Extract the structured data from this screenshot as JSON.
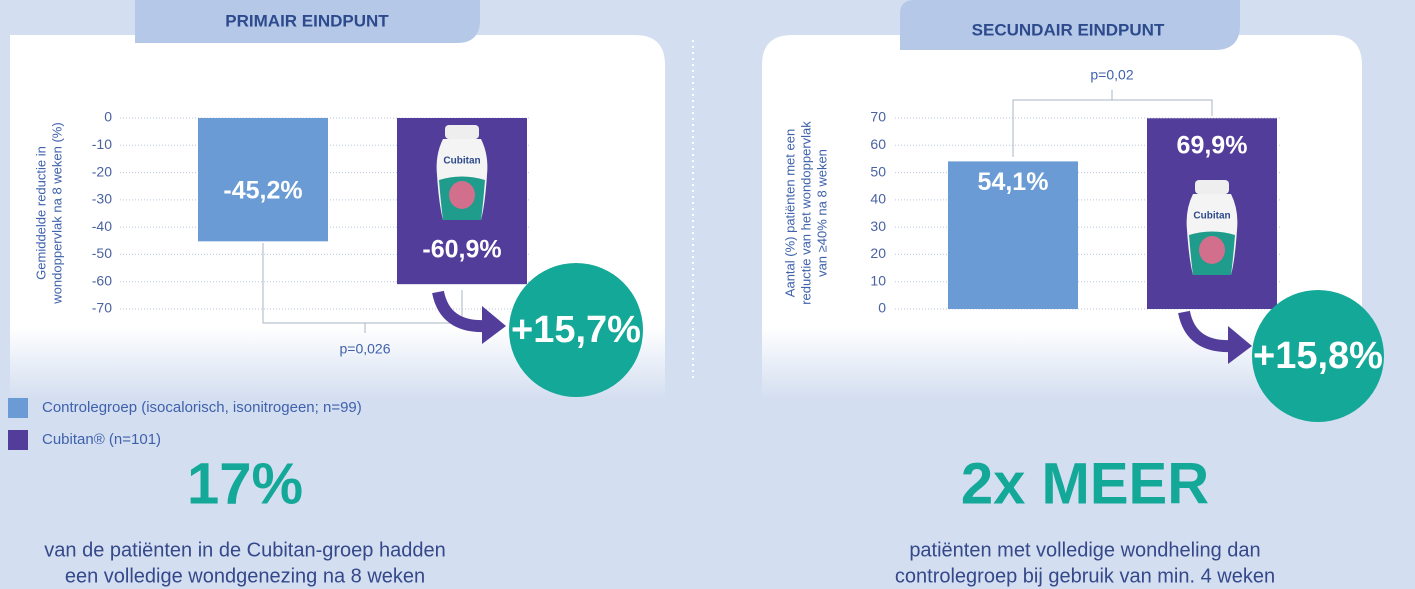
{
  "chart_data": [
    {
      "type": "bar",
      "title": "PRIMAIR EINDPUNT",
      "y_label": [
        "Gemiddelde reductie in",
        "wondoppervlak na 8 weken (%)"
      ],
      "categories": [
        null
      ],
      "series": [
        {
          "name": "Controlegroep (isocalorisch, isonitrogeen; n=99)",
          "color": "#6a9bd4",
          "values": [
            -45.2
          ],
          "value_labels": [
            "-45,2%"
          ]
        },
        {
          "name": "Cubitan® (n=101)",
          "color": "#533d9b",
          "values": [
            -60.9
          ],
          "value_labels": [
            "-60,9%"
          ]
        }
      ],
      "ylim": [
        -70,
        0
      ],
      "yticks": [
        0,
        -10,
        -20,
        -30,
        -40,
        -50,
        -60,
        -70
      ],
      "grid": true,
      "annotations": {
        "p_value": "p=0,026",
        "difference": "+15,7%"
      }
    },
    {
      "type": "bar",
      "title": "SECUNDAIR EINDPUNT",
      "y_label": [
        "Aantal (%) patiënten met een",
        "reductie van het wondoppervlak",
        "van ≥40% na 8 weken"
      ],
      "categories": [
        null
      ],
      "series": [
        {
          "color": "#6a9bd4",
          "values": [
            54.1
          ],
          "value_labels": [
            "54,1%"
          ]
        },
        {
          "color": "#533d9b",
          "values": [
            69.9
          ],
          "value_labels": [
            "69,9%"
          ]
        }
      ],
      "ylim": [
        0,
        70
      ],
      "yticks": [
        70,
        60,
        50,
        40,
        30,
        20,
        10,
        0
      ],
      "grid": true,
      "annotations": {
        "p_value": "p=0,02",
        "difference": "+15,8%"
      }
    }
  ],
  "highlights": [
    {
      "headline": "17%",
      "lines": [
        "van de patiënten in de Cubitan-groep hadden",
        "een volledige wondgenezing na 8 weken"
      ]
    },
    {
      "headline": "2x MEER",
      "lines": [
        "patiënten met volledige wondheling dan",
        "controlegroep bij gebruik van min. 4 weken"
      ]
    }
  ]
}
